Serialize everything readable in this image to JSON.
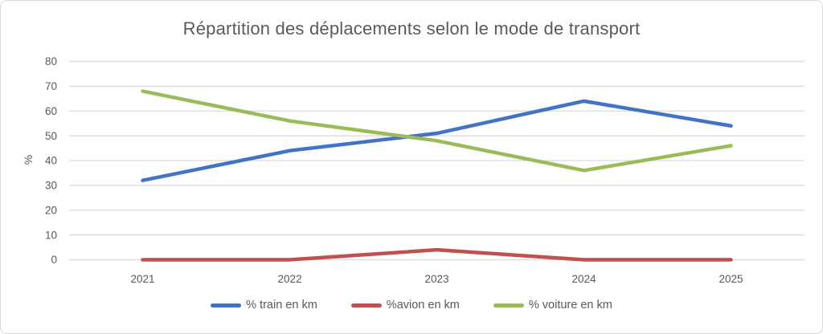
{
  "chart_data": {
    "type": "line",
    "title": "Répartition des déplacements selon le mode de transport",
    "categories": [
      "2021",
      "2022",
      "2023",
      "2024",
      "2025"
    ],
    "series": [
      {
        "name": "% train en km",
        "color": "#4472C4",
        "values": [
          32,
          44,
          51,
          64,
          54
        ]
      },
      {
        "name": "%avion en km",
        "color": "#C0504D",
        "values": [
          0,
          0,
          4,
          0,
          0
        ]
      },
      {
        "name": "% voiture en km",
        "color": "#9BBB59",
        "values": [
          68,
          56,
          48,
          36,
          46
        ]
      }
    ],
    "xlabel": "",
    "ylabel": "%",
    "ylim": [
      0,
      80
    ],
    "ytick_step": 10,
    "yticks": [
      0,
      10,
      20,
      30,
      40,
      50,
      60,
      70,
      80
    ],
    "grid": "horizontal",
    "legend_position": "bottom",
    "gridline_color": "#D9D9D9",
    "text_color": "#595959"
  }
}
